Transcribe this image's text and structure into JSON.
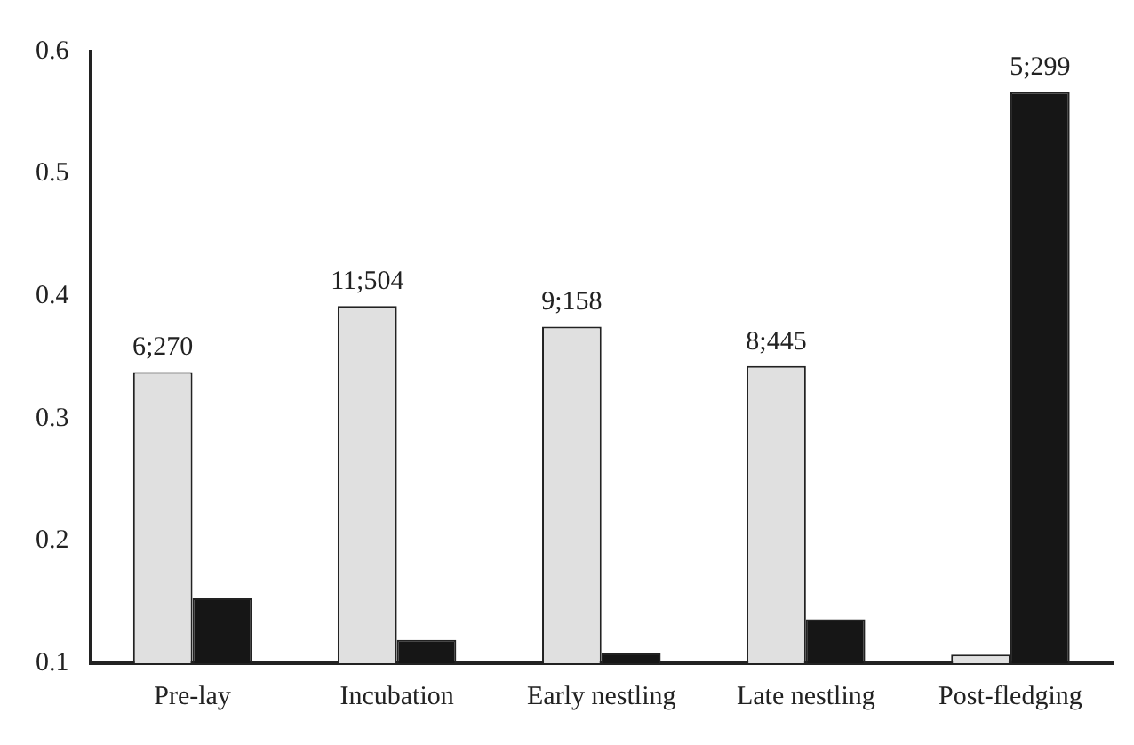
{
  "chart_data": {
    "type": "bar",
    "categories": [
      "Pre-lay",
      "Incubation",
      "Early nestling",
      "Late nestling",
      "Post-fledging"
    ],
    "series": [
      {
        "color": "#e0e0e0",
        "values": [
          0.338,
          0.392,
          0.375,
          0.343,
          0.107
        ]
      },
      {
        "color": "#161616",
        "values": [
          0.153,
          0.119,
          0.108,
          0.136,
          0.567
        ]
      }
    ],
    "ylim": [
      0.1,
      0.6
    ],
    "yticks": [
      0.1,
      0.2,
      0.3,
      0.4,
      0.5,
      0.6
    ],
    "grid": false,
    "legend": false,
    "annotations": [
      {
        "text": "6;270",
        "x": "Pre-lay",
        "y": 0.338
      },
      {
        "text": "11;504",
        "x": "Incubation",
        "y": 0.392
      },
      {
        "text": "9;158",
        "x": "Early nestling",
        "y": 0.375
      },
      {
        "text": "8;445",
        "x": "Late nestling",
        "y": 0.343
      },
      {
        "text": "5;299",
        "x": "Post-fledging",
        "y": 0.567
      }
    ]
  }
}
